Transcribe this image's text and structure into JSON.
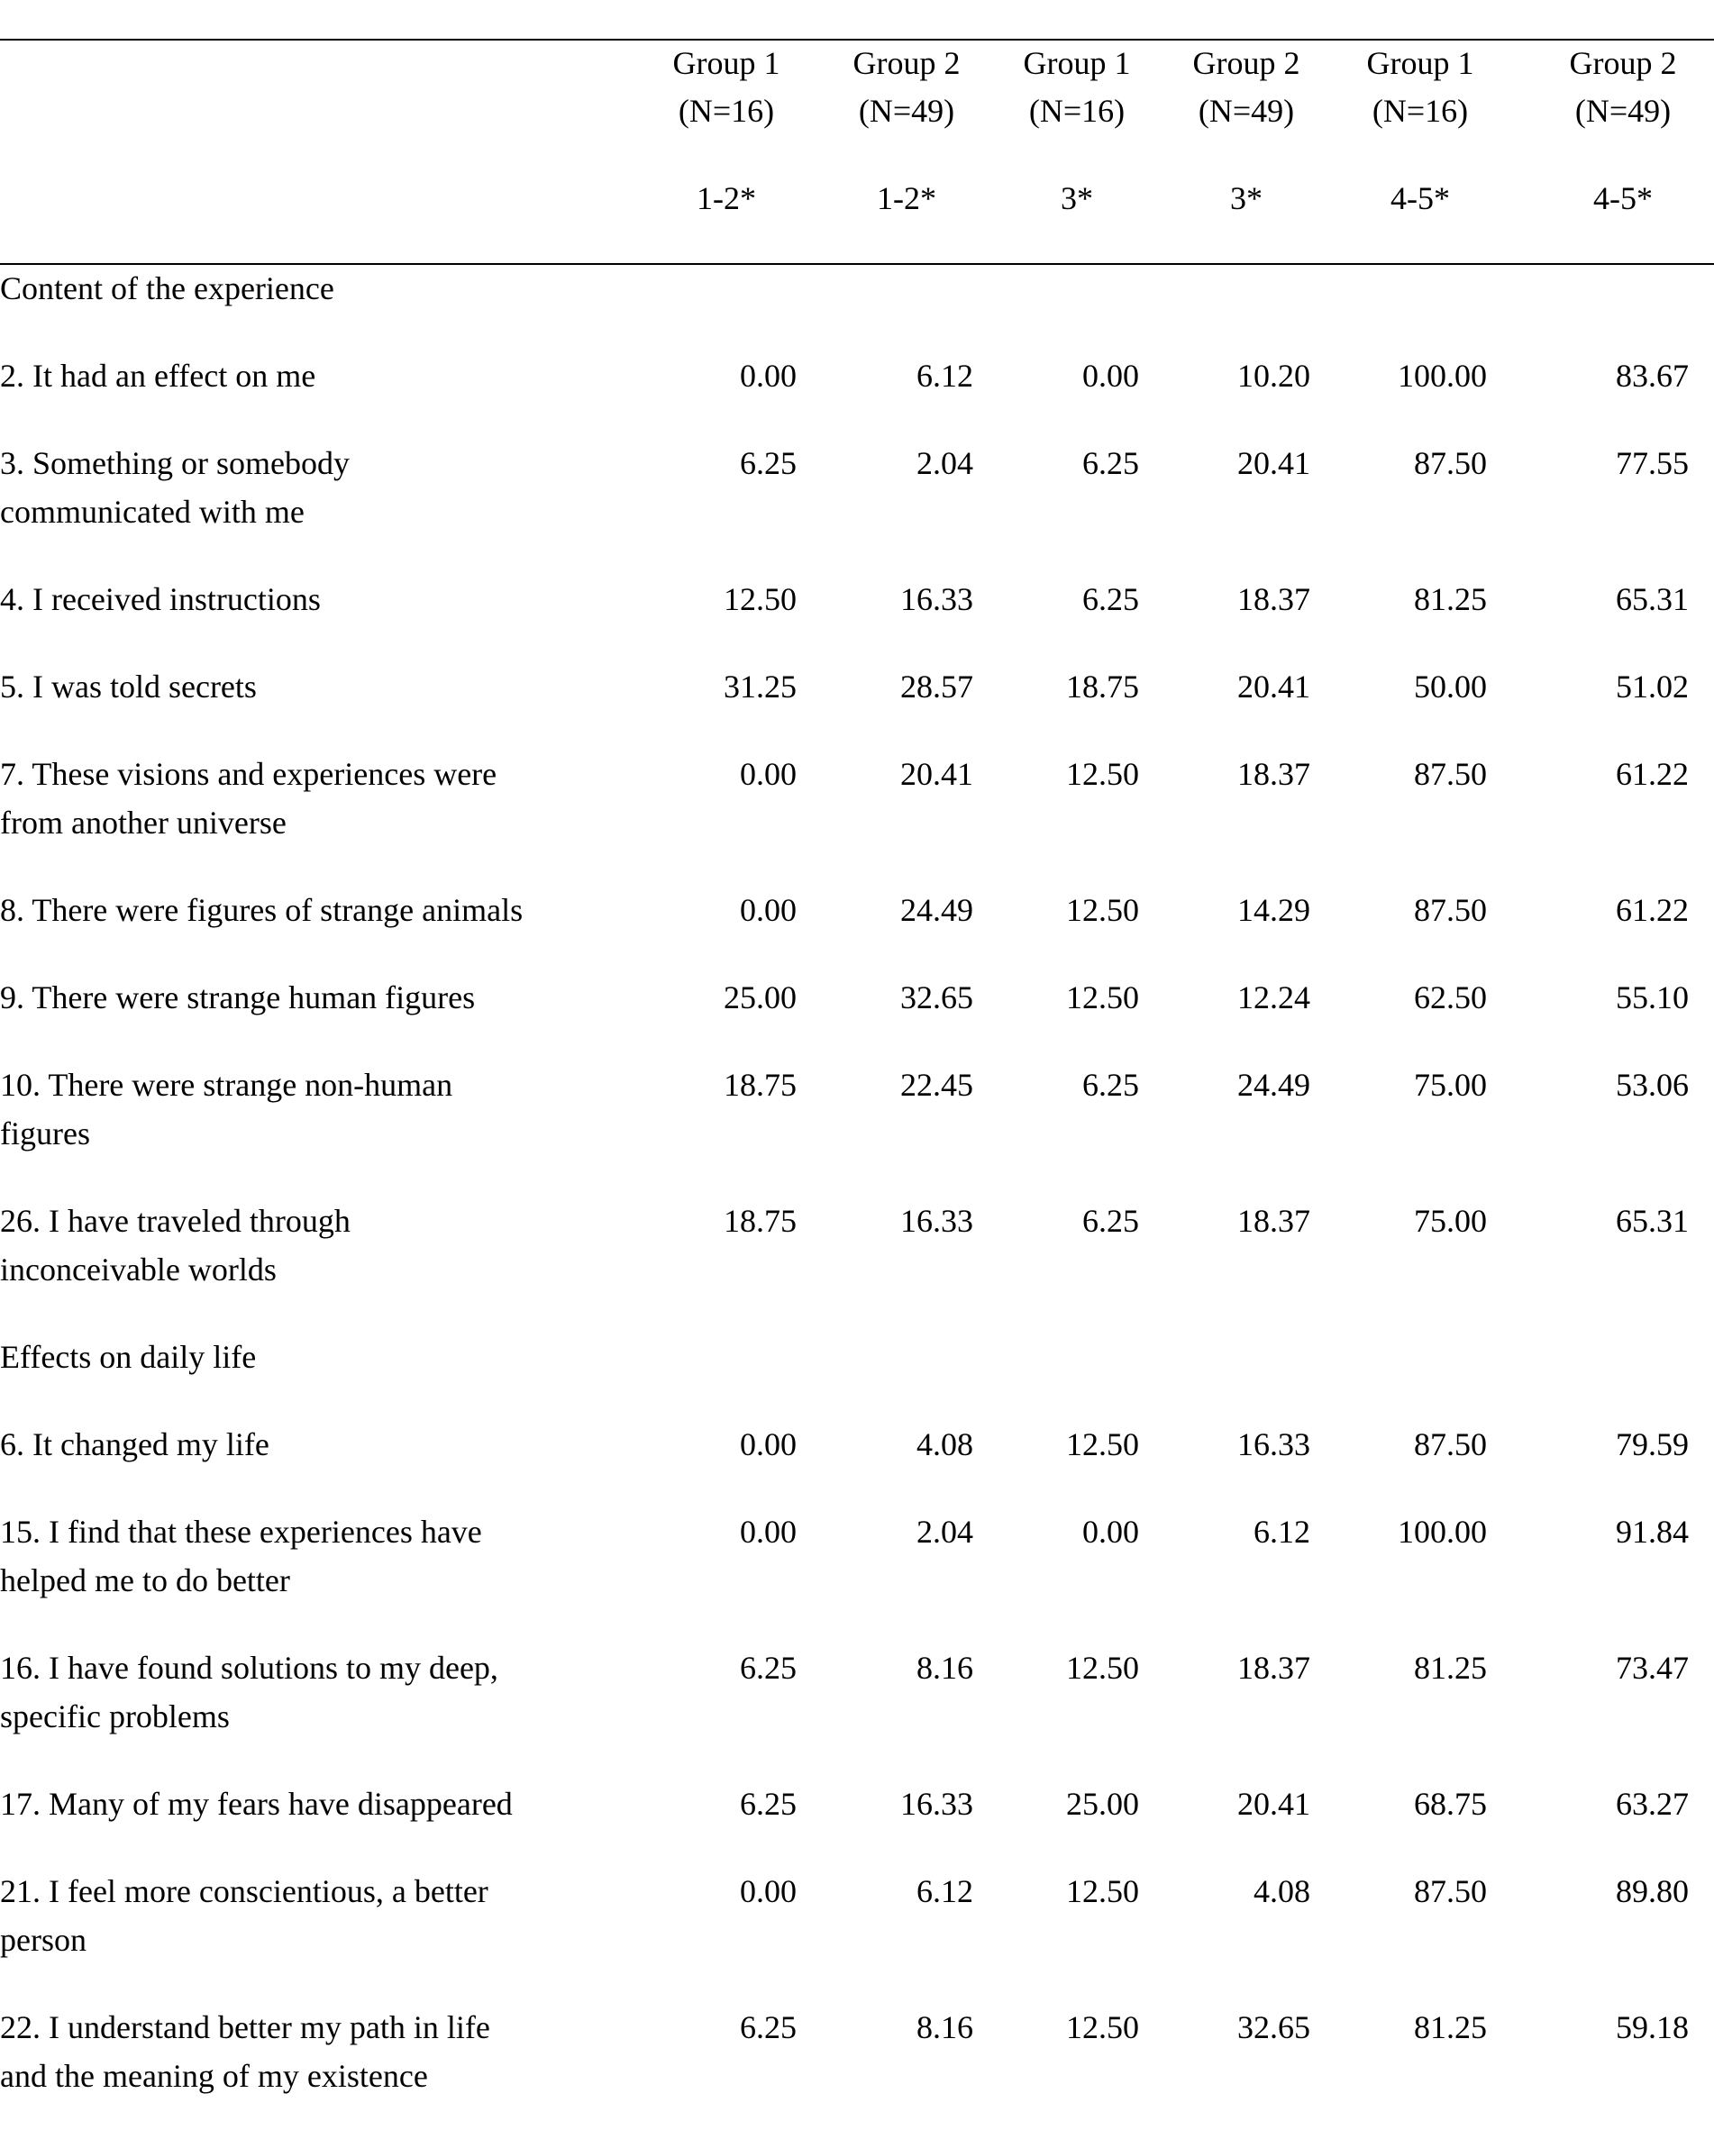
{
  "header": {
    "columns": [
      {
        "group": "Group 1",
        "n": "(N=16)",
        "range": "1-2*"
      },
      {
        "group": "Group 2",
        "n": "(N=49)",
        "range": "1-2*"
      },
      {
        "group": "Group 1",
        "n": "(N=16)",
        "range": "3*"
      },
      {
        "group": "Group 2",
        "n": "(N=49)",
        "range": "3*"
      },
      {
        "group": "Group 1",
        "n": "(N=16)",
        "range": "4-5*"
      },
      {
        "group": "Group 2",
        "n": "(N=49)",
        "range": "4-5*"
      }
    ]
  },
  "sections": [
    {
      "title": "Content of the experience",
      "rows": [
        {
          "label": "2. It had an effect on me",
          "values": [
            "0.00",
            "6.12",
            "0.00",
            "10.20",
            "100.00",
            "83.67"
          ]
        },
        {
          "label": "3. Something or somebody\ncommunicated with me",
          "values": [
            "6.25",
            "2.04",
            "6.25",
            "20.41",
            "87.50",
            "77.55"
          ]
        },
        {
          "label": "4. I received instructions",
          "values": [
            "12.50",
            "16.33",
            "6.25",
            "18.37",
            "81.25",
            "65.31"
          ]
        },
        {
          "label": "5. I was told secrets",
          "values": [
            "31.25",
            "28.57",
            "18.75",
            "20.41",
            "50.00",
            "51.02"
          ]
        },
        {
          "label": "7. These visions and experiences were\nfrom another universe",
          "values": [
            "0.00",
            "20.41",
            "12.50",
            "18.37",
            "87.50",
            "61.22"
          ]
        },
        {
          "label": "8. There were figures of strange animals",
          "values": [
            "0.00",
            "24.49",
            "12.50",
            "14.29",
            "87.50",
            "61.22"
          ]
        },
        {
          "label": "9. There were strange human figures",
          "values": [
            "25.00",
            "32.65",
            "12.50",
            "12.24",
            "62.50",
            "55.10"
          ]
        },
        {
          "label": "10. There were strange non-human\nfigures",
          "values": [
            "18.75",
            "22.45",
            "6.25",
            "24.49",
            "75.00",
            "53.06"
          ]
        },
        {
          "label": "26. I have traveled through\ninconceivable worlds",
          "values": [
            "18.75",
            "16.33",
            "6.25",
            "18.37",
            "75.00",
            "65.31"
          ]
        }
      ]
    },
    {
      "title": "Effects on daily life",
      "rows": [
        {
          "label": "6. It changed my life",
          "values": [
            "0.00",
            "4.08",
            "12.50",
            "16.33",
            "87.50",
            "79.59"
          ]
        },
        {
          "label": "15. I find that these experiences have\nhelped me to do better",
          "values": [
            "0.00",
            "2.04",
            "0.00",
            "6.12",
            "100.00",
            "91.84"
          ]
        },
        {
          "label": "16. I have found solutions to my deep,\nspecific problems",
          "values": [
            "6.25",
            "8.16",
            "12.50",
            "18.37",
            "81.25",
            "73.47"
          ]
        },
        {
          "label": "17. Many of my fears have disappeared",
          "values": [
            "6.25",
            "16.33",
            "25.00",
            "20.41",
            "68.75",
            "63.27"
          ]
        },
        {
          "label": "21. I feel more conscientious, a better\nperson",
          "values": [
            "0.00",
            "6.12",
            "12.50",
            "4.08",
            "87.50",
            "89.80"
          ]
        },
        {
          "label": "22. I understand better my path in life\nand the meaning of my existence",
          "values": [
            "6.25",
            "8.16",
            "12.50",
            "32.65",
            "81.25",
            "59.18"
          ]
        }
      ]
    }
  ]
}
